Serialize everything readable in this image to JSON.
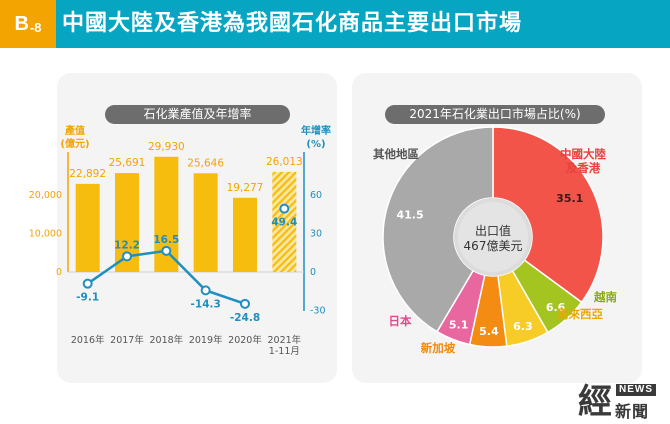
{
  "header": {
    "badge_letter": "B",
    "badge_number": "-8",
    "title": "中國大陸及香港為我國石化商品主要出口市場"
  },
  "chart_data": [
    {
      "type": "bar",
      "title": "石化業產值及年增率",
      "categories": [
        "2016年",
        "2017年",
        "2018年",
        "2019年",
        "2020年",
        "2021年 1-11月"
      ],
      "y_left_label": [
        "產值",
        "(億元)"
      ],
      "y_left_ticks": [
        "20,000",
        "10,000",
        "0"
      ],
      "y_left_ticks_values": [
        20000,
        10000,
        0
      ],
      "y_left_range": [
        0,
        30000
      ],
      "y_right_label": [
        "年增率",
        "(%)"
      ],
      "y_right_ticks": [
        "60",
        "30",
        "0",
        "-30"
      ],
      "y_right_ticks_values": [
        60,
        30,
        0,
        -30
      ],
      "y_right_range": [
        -30,
        90
      ],
      "bar_values": [
        22892,
        25691,
        29930,
        25646,
        19277,
        26013
      ],
      "bar_labels": [
        "22,892",
        "25,691",
        "29,930",
        "25,646",
        "19,277",
        "26,013"
      ],
      "growth_values": [
        -9.1,
        12.2,
        16.5,
        -14.3,
        -24.8,
        49.4
      ],
      "growth_labels": [
        "-9.1",
        "12.2",
        "16.5",
        "-14.3",
        "-24.8",
        "49.4"
      ],
      "colors": {
        "bar": "#f6bd0e",
        "line": "#1f8fbf",
        "axis_left": "#f3a400",
        "axis_right": "#1f8fbf"
      }
    },
    {
      "type": "pie",
      "title": "2021年石化業出口市場占比(%)",
      "center_text": [
        "出口值",
        "467億美元"
      ],
      "slices": [
        {
          "label": "中國大陸 及香港",
          "value": 35.1,
          "value_label": "35.1",
          "color": "#f2544a",
          "label_color": "#e8403a"
        },
        {
          "label": "越南",
          "value": 6.6,
          "value_label": "6.6",
          "color": "#a4c41f",
          "label_color": "#8aab10"
        },
        {
          "label": "馬來西亞",
          "value": 6.3,
          "value_label": "6.3",
          "color": "#f7cc26",
          "label_color": "#e8a800"
        },
        {
          "label": "新加坡",
          "value": 5.4,
          "value_label": "5.4",
          "color": "#f48b12",
          "label_color": "#f08a10"
        },
        {
          "label": "日本",
          "value": 5.1,
          "value_label": "5.1",
          "color": "#e8679e",
          "label_color": "#e24a8e"
        },
        {
          "label": "其他地區",
          "value": 41.5,
          "value_label": "41.5",
          "color": "#a9a9a9",
          "label_color": "#555555"
        }
      ]
    }
  ],
  "logo": {
    "char": "經",
    "badge": "NEWS",
    "sub": "新聞"
  }
}
